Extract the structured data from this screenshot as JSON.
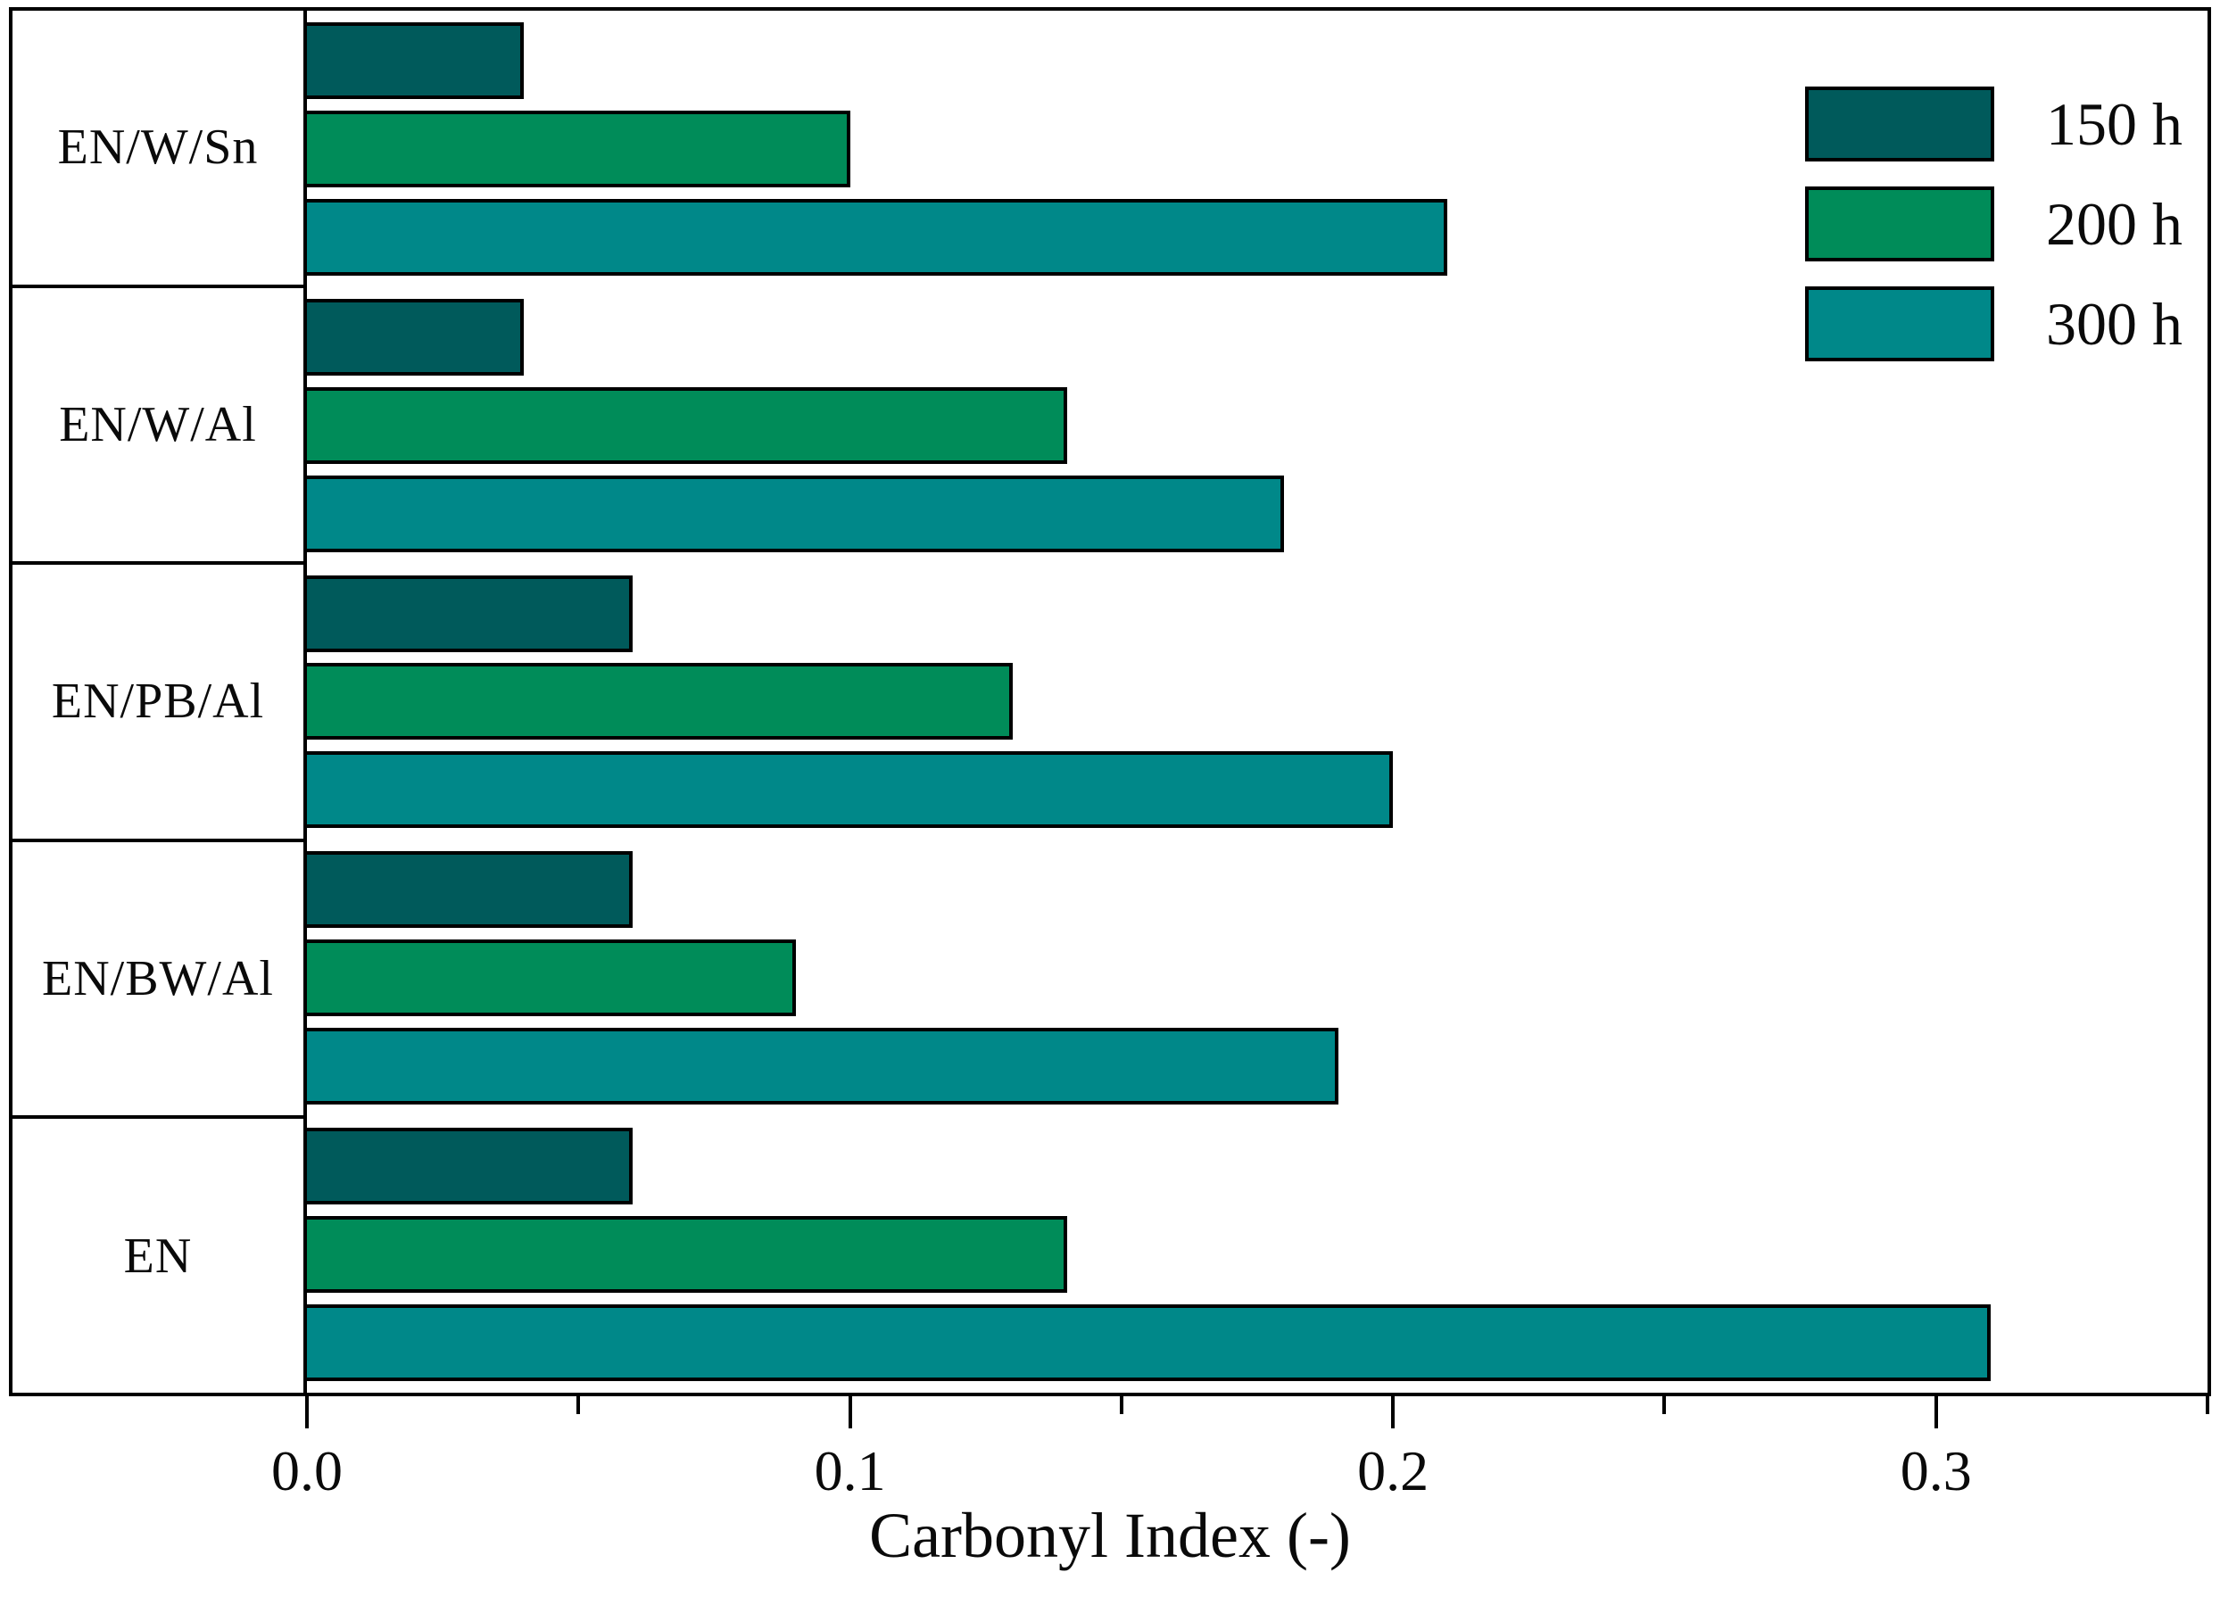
{
  "figure": {
    "background": "#ffffff",
    "frame_color": "#000000"
  },
  "chart_data": {
    "type": "bar",
    "orientation": "horizontal",
    "title": "",
    "xlabel": "Carbonyl Index (-)",
    "ylabel": "",
    "xlim": [
      0,
      0.35
    ],
    "grid": false,
    "legend_position": "top-right",
    "categories": [
      "EN/W/Sn",
      "EN/W/Al",
      "EN/PB/Al",
      "EN/BW/Al",
      "EN"
    ],
    "series": [
      {
        "name": "150 h",
        "color": "#005a5b",
        "values": [
          0.04,
          0.04,
          0.06,
          0.06,
          0.06
        ]
      },
      {
        "name": "200 h",
        "color": "#008c59",
        "values": [
          0.1,
          0.14,
          0.13,
          0.09,
          0.14
        ]
      },
      {
        "name": "300 h",
        "color": "#008889",
        "values": [
          0.21,
          0.18,
          0.2,
          0.19,
          0.31
        ]
      }
    ],
    "x_major_ticks": [
      0.0,
      0.1,
      0.2,
      0.3
    ],
    "x_major_tick_labels": [
      "0.0",
      "0.1",
      "0.2",
      "0.3"
    ],
    "x_minor_ticks": [
      0.05,
      0.15,
      0.25,
      0.35
    ]
  }
}
